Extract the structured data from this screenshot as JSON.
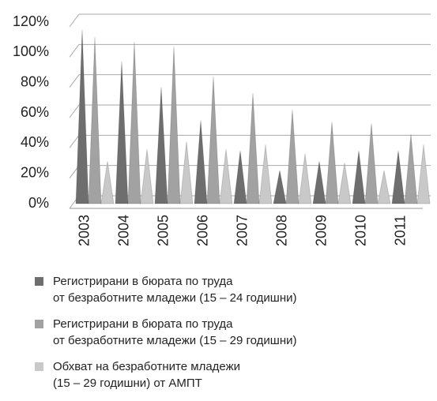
{
  "chart_data": {
    "type": "bar",
    "categories": [
      "2003",
      "2004",
      "2005",
      "2006",
      "2007",
      "2008",
      "2009",
      "2010",
      "2011"
    ],
    "series": [
      {
        "name": "Регистрирани в бюрата по труда\nот безработните младежи (15 – 24 годишни)",
        "color": "#6e6e6e",
        "values": [
          115,
          94,
          77,
          55,
          35,
          22,
          28,
          35,
          35
        ]
      },
      {
        "name": "Регистрирани в бюрата по труда\nот безработните младежи (15 – 29 годишни)",
        "color": "#a2a2a2",
        "values": [
          110,
          107,
          104,
          84,
          73,
          62,
          54,
          53,
          46
        ]
      },
      {
        "name": "Обхват на безработните младежи\n(15 – 29 годишни) от АМПТ",
        "color": "#c9c9c9",
        "values": [
          28,
          36,
          41,
          36,
          39,
          33,
          27,
          22,
          39
        ]
      }
    ],
    "ylim": [
      0,
      120
    ],
    "yticks": [
      {
        "value": 0,
        "label": "0%"
      },
      {
        "value": 20,
        "label": "20%"
      },
      {
        "value": 40,
        "label": "40%"
      },
      {
        "value": 60,
        "label": "60%"
      },
      {
        "value": 80,
        "label": "80%"
      },
      {
        "value": 100,
        "label": "100%"
      },
      {
        "value": 120,
        "label": "120%"
      }
    ],
    "grid": true
  }
}
